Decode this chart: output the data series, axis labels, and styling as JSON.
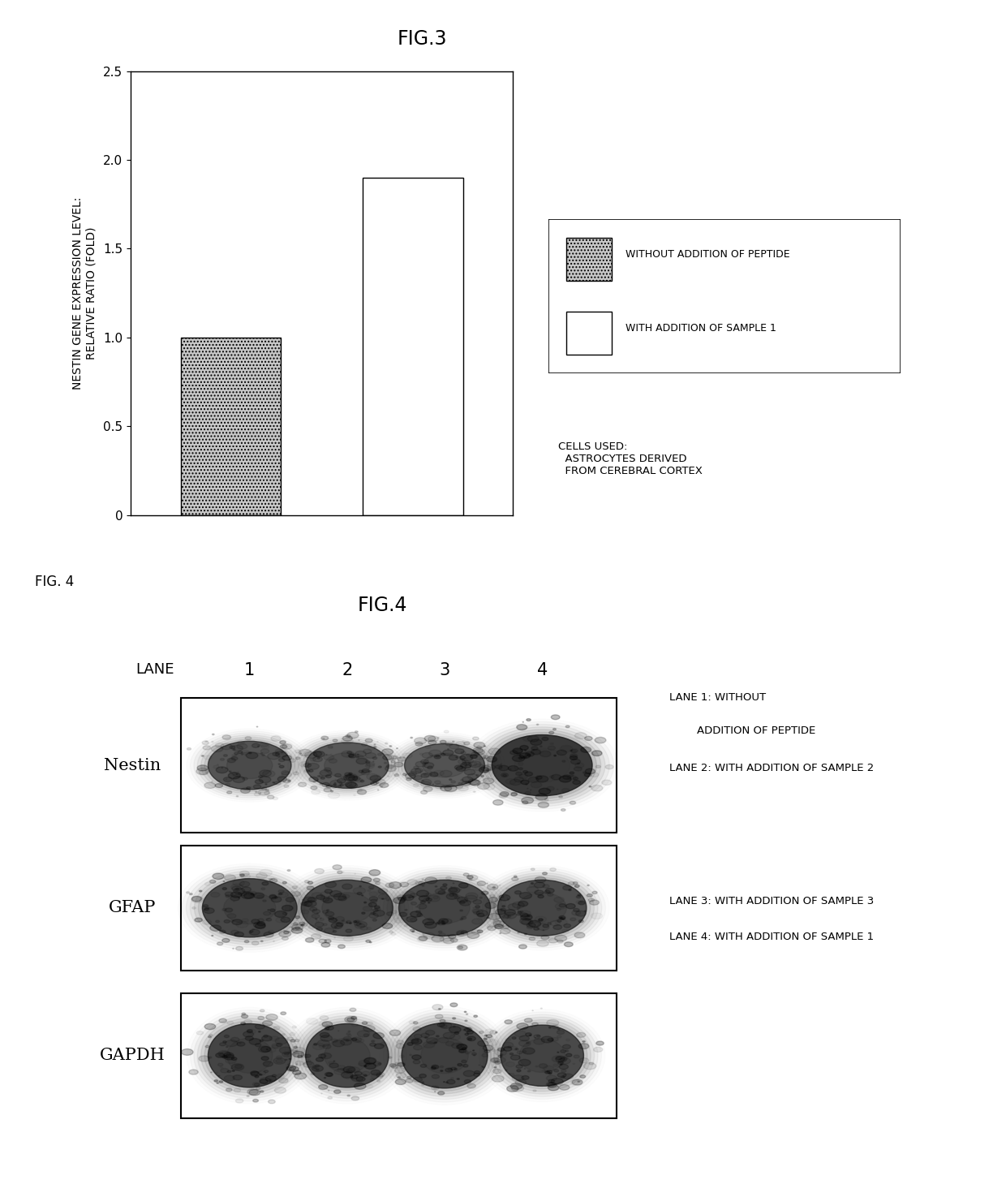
{
  "fig3_title": "FIG.3",
  "fig4_label_topleft": "FIG. 4",
  "fig4_title": "FIG.4",
  "bar_values": [
    1.0,
    1.9
  ],
  "bar_colors": [
    "#c8c8c8",
    "#ffffff"
  ],
  "bar_hatch": [
    "....",
    ""
  ],
  "bar_edgecolor": "#000000",
  "bar_positions": [
    0,
    1
  ],
  "bar_width": 0.55,
  "ylim": [
    0,
    2.5
  ],
  "yticks": [
    0,
    0.5,
    1.0,
    1.5,
    2.0,
    2.5
  ],
  "ylabel": "NESTIN GENE EXPRESSION LEVEL:\nRELATIVE RATIO (FOLD)",
  "legend_labels": [
    "WITHOUT ADDITION OF PEPTIDE",
    "WITH ADDITION OF SAMPLE 1"
  ],
  "legend_hatch": [
    "....",
    ""
  ],
  "legend_colors": [
    "#c8c8c8",
    "#ffffff"
  ],
  "cells_text": "CELLS USED:\n  ASTROCYTES DERIVED\n  FROM CEREBRAL CORTEX",
  "lane_labels": [
    "LANE",
    "1",
    "2",
    "3",
    "4"
  ],
  "row_labels": [
    "Nestin",
    "GFAP",
    "GAPDH"
  ],
  "lane_notes_line1": "LANE 1: WITHOUT",
  "lane_notes_line2": "        ADDITION OF PEPTIDE",
  "lane_notes_rest": [
    "LANE 2: WITH ADDITION OF SAMPLE 2",
    "LANE 3: WITH ADDITION OF SAMPLE 3",
    "LANE 4: WITH ADDITION OF SAMPLE 1"
  ],
  "background_color": "#ffffff",
  "text_color": "#000000"
}
